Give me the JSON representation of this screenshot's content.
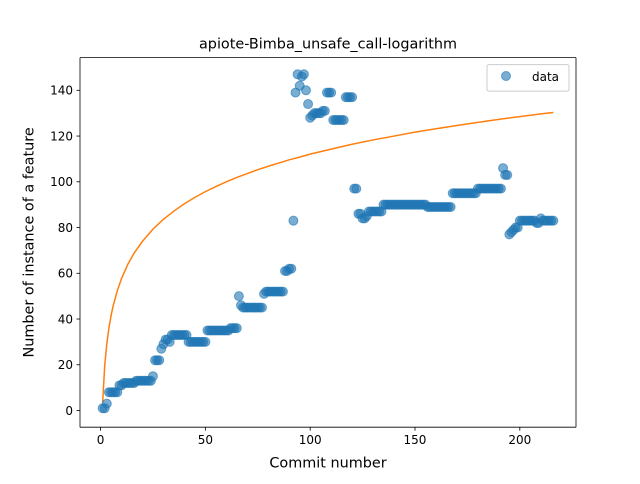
{
  "chart_data": {
    "type": "scatter",
    "title": "apiote-Bimba_unsafe_call-logarithm",
    "xlabel": "Commit number",
    "ylabel": "Number of instance of a feature",
    "xlim": [
      -9.8,
      226.8
    ],
    "ylim": [
      -7.3,
      154.3
    ],
    "xticks": [
      0,
      50,
      100,
      150,
      200
    ],
    "yticks": [
      0,
      20,
      40,
      60,
      80,
      100,
      120,
      140
    ],
    "grid": false,
    "legend": {
      "placement": "top-right",
      "entries": [
        {
          "label": "data",
          "marker": "circle",
          "color": "#1f77b4"
        }
      ]
    },
    "series": [
      {
        "name": "data",
        "kind": "scatter",
        "color": "#1f77b4",
        "alpha": 0.6,
        "points": [
          [
            1,
            1
          ],
          [
            2,
            1
          ],
          [
            3,
            3
          ],
          [
            4,
            8
          ],
          [
            5,
            8
          ],
          [
            6,
            8
          ],
          [
            7,
            8
          ],
          [
            8,
            8
          ],
          [
            9,
            11
          ],
          [
            10,
            11
          ],
          [
            11,
            12
          ],
          [
            12,
            12
          ],
          [
            13,
            12
          ],
          [
            14,
            12
          ],
          [
            15,
            12
          ],
          [
            16,
            12
          ],
          [
            17,
            13
          ],
          [
            18,
            13
          ],
          [
            19,
            13
          ],
          [
            20,
            13
          ],
          [
            21,
            13
          ],
          [
            22,
            13
          ],
          [
            23,
            13
          ],
          [
            24,
            13
          ],
          [
            25,
            15
          ],
          [
            26,
            22
          ],
          [
            27,
            22
          ],
          [
            28,
            22
          ],
          [
            29,
            27
          ],
          [
            30,
            29
          ],
          [
            31,
            31
          ],
          [
            32,
            31
          ],
          [
            33,
            30
          ],
          [
            34,
            33
          ],
          [
            35,
            33
          ],
          [
            36,
            33
          ],
          [
            37,
            33
          ],
          [
            38,
            33
          ],
          [
            39,
            33
          ],
          [
            40,
            33
          ],
          [
            41,
            33
          ],
          [
            42,
            30
          ],
          [
            43,
            30
          ],
          [
            44,
            30
          ],
          [
            45,
            30
          ],
          [
            46,
            30
          ],
          [
            47,
            30
          ],
          [
            48,
            30
          ],
          [
            49,
            30
          ],
          [
            50,
            30
          ],
          [
            51,
            35
          ],
          [
            52,
            35
          ],
          [
            53,
            35
          ],
          [
            54,
            35
          ],
          [
            55,
            35
          ],
          [
            56,
            35
          ],
          [
            57,
            35
          ],
          [
            58,
            35
          ],
          [
            59,
            35
          ],
          [
            60,
            35
          ],
          [
            61,
            35
          ],
          [
            62,
            36
          ],
          [
            63,
            36
          ],
          [
            64,
            36
          ],
          [
            65,
            36
          ],
          [
            66,
            50
          ],
          [
            67,
            46
          ],
          [
            68,
            45
          ],
          [
            69,
            45
          ],
          [
            70,
            45
          ],
          [
            71,
            45
          ],
          [
            72,
            45
          ],
          [
            73,
            45
          ],
          [
            74,
            45
          ],
          [
            75,
            45
          ],
          [
            76,
            45
          ],
          [
            77,
            45
          ],
          [
            78,
            51
          ],
          [
            79,
            52
          ],
          [
            80,
            52
          ],
          [
            81,
            52
          ],
          [
            82,
            52
          ],
          [
            83,
            52
          ],
          [
            84,
            52
          ],
          [
            85,
            52
          ],
          [
            86,
            52
          ],
          [
            87,
            52
          ],
          [
            88,
            61
          ],
          [
            89,
            61
          ],
          [
            90,
            62
          ],
          [
            91,
            62
          ],
          [
            92,
            83
          ],
          [
            93,
            139
          ],
          [
            94,
            147
          ],
          [
            95,
            142
          ],
          [
            96,
            146
          ],
          [
            97,
            147
          ],
          [
            98,
            140
          ],
          [
            99,
            134
          ],
          [
            100,
            128
          ],
          [
            101,
            129
          ],
          [
            102,
            130
          ],
          [
            103,
            130
          ],
          [
            104,
            130
          ],
          [
            105,
            130
          ],
          [
            106,
            131
          ],
          [
            107,
            131
          ],
          [
            108,
            139
          ],
          [
            109,
            139
          ],
          [
            110,
            139
          ],
          [
            111,
            127
          ],
          [
            112,
            127
          ],
          [
            113,
            127
          ],
          [
            114,
            127
          ],
          [
            115,
            127
          ],
          [
            116,
            127
          ],
          [
            117,
            137
          ],
          [
            118,
            137
          ],
          [
            119,
            137
          ],
          [
            120,
            137
          ],
          [
            121,
            97
          ],
          [
            122,
            97
          ],
          [
            123,
            86
          ],
          [
            124,
            86
          ],
          [
            125,
            84
          ],
          [
            126,
            84
          ],
          [
            127,
            85
          ],
          [
            128,
            87
          ],
          [
            129,
            87
          ],
          [
            130,
            87
          ],
          [
            131,
            87
          ],
          [
            132,
            87
          ],
          [
            133,
            87
          ],
          [
            134,
            87
          ],
          [
            135,
            90
          ],
          [
            136,
            90
          ],
          [
            137,
            90
          ],
          [
            138,
            90
          ],
          [
            139,
            90
          ],
          [
            140,
            90
          ],
          [
            141,
            90
          ],
          [
            142,
            90
          ],
          [
            143,
            90
          ],
          [
            144,
            90
          ],
          [
            145,
            90
          ],
          [
            146,
            90
          ],
          [
            147,
            90
          ],
          [
            148,
            90
          ],
          [
            149,
            90
          ],
          [
            150,
            90
          ],
          [
            151,
            90
          ],
          [
            152,
            90
          ],
          [
            153,
            90
          ],
          [
            154,
            90
          ],
          [
            155,
            90
          ],
          [
            156,
            89
          ],
          [
            157,
            89
          ],
          [
            158,
            89
          ],
          [
            159,
            89
          ],
          [
            160,
            89
          ],
          [
            161,
            89
          ],
          [
            162,
            89
          ],
          [
            163,
            89
          ],
          [
            164,
            89
          ],
          [
            165,
            89
          ],
          [
            166,
            89
          ],
          [
            167,
            89
          ],
          [
            168,
            95
          ],
          [
            169,
            95
          ],
          [
            170,
            95
          ],
          [
            171,
            95
          ],
          [
            172,
            95
          ],
          [
            173,
            95
          ],
          [
            174,
            95
          ],
          [
            175,
            95
          ],
          [
            176,
            95
          ],
          [
            177,
            95
          ],
          [
            178,
            95
          ],
          [
            179,
            95
          ],
          [
            180,
            97
          ],
          [
            181,
            97
          ],
          [
            182,
            97
          ],
          [
            183,
            97
          ],
          [
            184,
            97
          ],
          [
            185,
            97
          ],
          [
            186,
            97
          ],
          [
            187,
            97
          ],
          [
            188,
            97
          ],
          [
            189,
            97
          ],
          [
            190,
            97
          ],
          [
            191,
            97
          ],
          [
            192,
            106
          ],
          [
            193,
            103
          ],
          [
            194,
            103
          ],
          [
            195,
            77
          ],
          [
            196,
            78
          ],
          [
            197,
            79
          ],
          [
            198,
            80
          ],
          [
            199,
            80
          ],
          [
            200,
            83
          ],
          [
            201,
            83
          ],
          [
            202,
            83
          ],
          [
            203,
            83
          ],
          [
            204,
            83
          ],
          [
            205,
            83
          ],
          [
            206,
            83
          ],
          [
            207,
            83
          ],
          [
            208,
            82
          ],
          [
            209,
            82
          ],
          [
            210,
            84
          ],
          [
            211,
            83
          ],
          [
            212,
            83
          ],
          [
            213,
            83
          ],
          [
            214,
            83
          ],
          [
            215,
            83
          ],
          [
            216,
            83
          ]
        ]
      },
      {
        "kind": "line",
        "color": "#ff7f0e",
        "model": "logarithmic fit",
        "points": [
          [
            1,
            3.4
          ],
          [
            2,
            19.8
          ],
          [
            3,
            29.3
          ],
          [
            4,
            36.1
          ],
          [
            5,
            41.4
          ],
          [
            6,
            45.7
          ],
          [
            8,
            52.4
          ],
          [
            10,
            57.7
          ],
          [
            13,
            63.9
          ],
          [
            16,
            68.8
          ],
          [
            20,
            74.0
          ],
          [
            25,
            79.3
          ],
          [
            30,
            83.6
          ],
          [
            35,
            87.2
          ],
          [
            40,
            90.4
          ],
          [
            45,
            93.2
          ],
          [
            50,
            95.7
          ],
          [
            55,
            97.9
          ],
          [
            60,
            100.0
          ],
          [
            65,
            101.9
          ],
          [
            70,
            103.6
          ],
          [
            75,
            105.3
          ],
          [
            80,
            106.8
          ],
          [
            85,
            108.2
          ],
          [
            90,
            109.6
          ],
          [
            95,
            110.8
          ],
          [
            100,
            112.1
          ],
          [
            110,
            114.3
          ],
          [
            120,
            116.4
          ],
          [
            130,
            118.3
          ],
          [
            140,
            120.0
          ],
          [
            150,
            121.7
          ],
          [
            160,
            123.2
          ],
          [
            170,
            124.6
          ],
          [
            180,
            126.0
          ],
          [
            190,
            127.3
          ],
          [
            200,
            128.5
          ],
          [
            210,
            129.7
          ],
          [
            216,
            130.3
          ]
        ]
      }
    ]
  }
}
